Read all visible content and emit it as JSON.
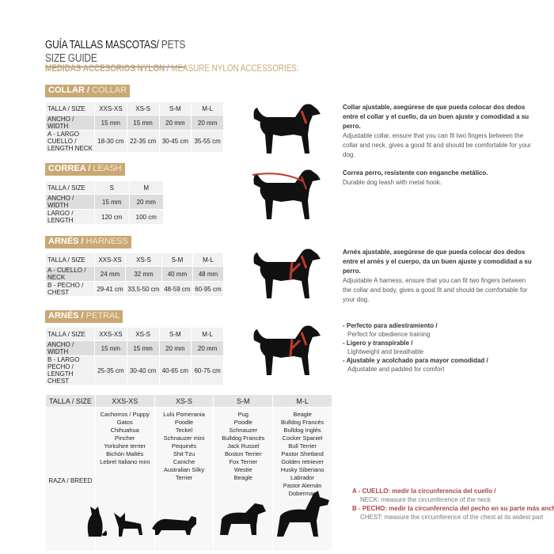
{
  "title": {
    "es": "GUÍA TALLAS MASCOTAS/",
    "en": " PETS SIZE GUIDE"
  },
  "subtitle": {
    "es": "MEDIDAS ACCESORIOS NYLON /",
    "en": " MEASURE NYLON ACCESSORIES:"
  },
  "collar": {
    "band_es": "COLLAR /",
    "band_en": " COLLAR",
    "header": [
      "TALLA / SIZE",
      "XXS-XS",
      "XS-S",
      "S-M",
      "M-L"
    ],
    "rows": [
      [
        "ANCHO / WIDTH",
        "15 mm",
        "15 mm",
        "20 mm",
        "20 mm"
      ],
      [
        "A - LARGO CUELLO / LENGTH NECK",
        "18-30 cm",
        "22-35 cm",
        "30-45 cm",
        "35-55 cm"
      ]
    ],
    "desc_es": "Collar ajustable, asegúrese de que pueda colocar dos dedos entre el collar y el cuello, da un buen ajuste y comodidad a su perro.",
    "desc_en": "Adjustable collar, ensure that you can fit two fingers between the collar and neck, gives a good fit and should be comfortable for your dog."
  },
  "leash": {
    "band_es": "CORREA /",
    "band_en": " LEASH",
    "header": [
      "TALLA / SIZE",
      "S",
      "M"
    ],
    "rows": [
      [
        "ANCHO / WIDTH",
        "15 mm",
        "20 mm"
      ],
      [
        "LARGO / LENGTH",
        "120 cm",
        "100 cm"
      ]
    ],
    "desc_es": "Correa perro, resistente con enganche metálico.",
    "desc_en": "Durable dog leash with metal hook."
  },
  "harness": {
    "band_es": "ARNÉS /",
    "band_en": " HARNESS",
    "header": [
      "TALLA / SIZE",
      "XXS-XS",
      "XS-S",
      "S-M",
      "M-L"
    ],
    "rows": [
      [
        "A - CUELLO / NECK",
        "24 mm",
        "32 mm",
        "40 mm",
        "48 mm"
      ],
      [
        "B - PECHO / CHEST",
        "29-41 cm",
        "33,5-50 cm",
        "48-59 cm",
        "60-95 cm"
      ]
    ],
    "desc_es": "Arnés ajustable, asegúrese de que pueda colocar dos dedos entre el arnés y el cuerpo, da un buen ajuste y comodidad a su perro.",
    "desc_en": "Adjustable A harness, ensure that you can fit two fingers between the collar and body, gives a good fit and should be comfortable for your dog."
  },
  "petral": {
    "band_es": "ARNÉS /",
    "band_en": " PETRAL",
    "header": [
      "TALLA / SIZE",
      "XXS-XS",
      "XS-S",
      "S-M",
      "M-L"
    ],
    "rows": [
      [
        "ANCHO / WIDTH",
        "15 mm",
        "15 mm",
        "20 mm",
        "20 mm"
      ],
      [
        "B - LARGO PECHO / LENGTH CHEST",
        "25-35 cm",
        "30-40 cm",
        "40-65 cm",
        "60-75 cm"
      ]
    ],
    "bullets": [
      {
        "es": "- Perfecto para adiestramiento /",
        "en": "Perfect for obedience training"
      },
      {
        "es": "- Ligero y transpirable /",
        "en": "Lightweight and breathable"
      },
      {
        "es": "- Ajustable y acolchado para mayor comodidad /",
        "en": "Adjustable and padded for comfort"
      }
    ]
  },
  "breeds": {
    "header": [
      "TALLA /  SIZE",
      "XXS-XS",
      "XS-S",
      "S-M",
      "M-L"
    ],
    "row_label": "RAZA / BREED",
    "cols": [
      [
        "Cachorros / Puppy",
        "Gatos",
        "Chihuahua",
        "Pincher",
        "Yorkshire terrier",
        "Bichón Maltés",
        "Lebrel Italiano mini"
      ],
      [
        "Lulú Pomerania",
        "Poodle",
        "Teckel",
        "Schnauzer mini",
        "Pequinés",
        "Shit Tzu",
        "Caniche",
        "Australian Silky Terrier"
      ],
      [
        "Pug",
        "Poodle",
        "Schnauzer",
        "Bulldog Francés",
        "Jack Russel",
        "Boston Terrier",
        "Fox Terrier",
        "Westie",
        "Beagle"
      ],
      [
        "Beagle",
        "Bulldog Francés",
        "Bulldog Inglés",
        "Cocker Spaniel",
        "Bull Terrier",
        "Pastor Shetland",
        "Golden retriever",
        "Husky Siberiano",
        "Labrador",
        "Pastor Alemán",
        "Doberman"
      ]
    ]
  },
  "notes": [
    {
      "es": "A - CUELLO: medir la circunferencia del cuello /",
      "en": "NECK: measure the circumference of the neck"
    },
    {
      "es": "B - PECHO: medir la circunferencia del pecho en su parte más ancha /",
      "en": "CHEST: measure the circumference of the chest at its widest part"
    }
  ],
  "colors": {
    "accent": "#c9a874",
    "strap": "#c0392b",
    "note": "#a44444"
  }
}
